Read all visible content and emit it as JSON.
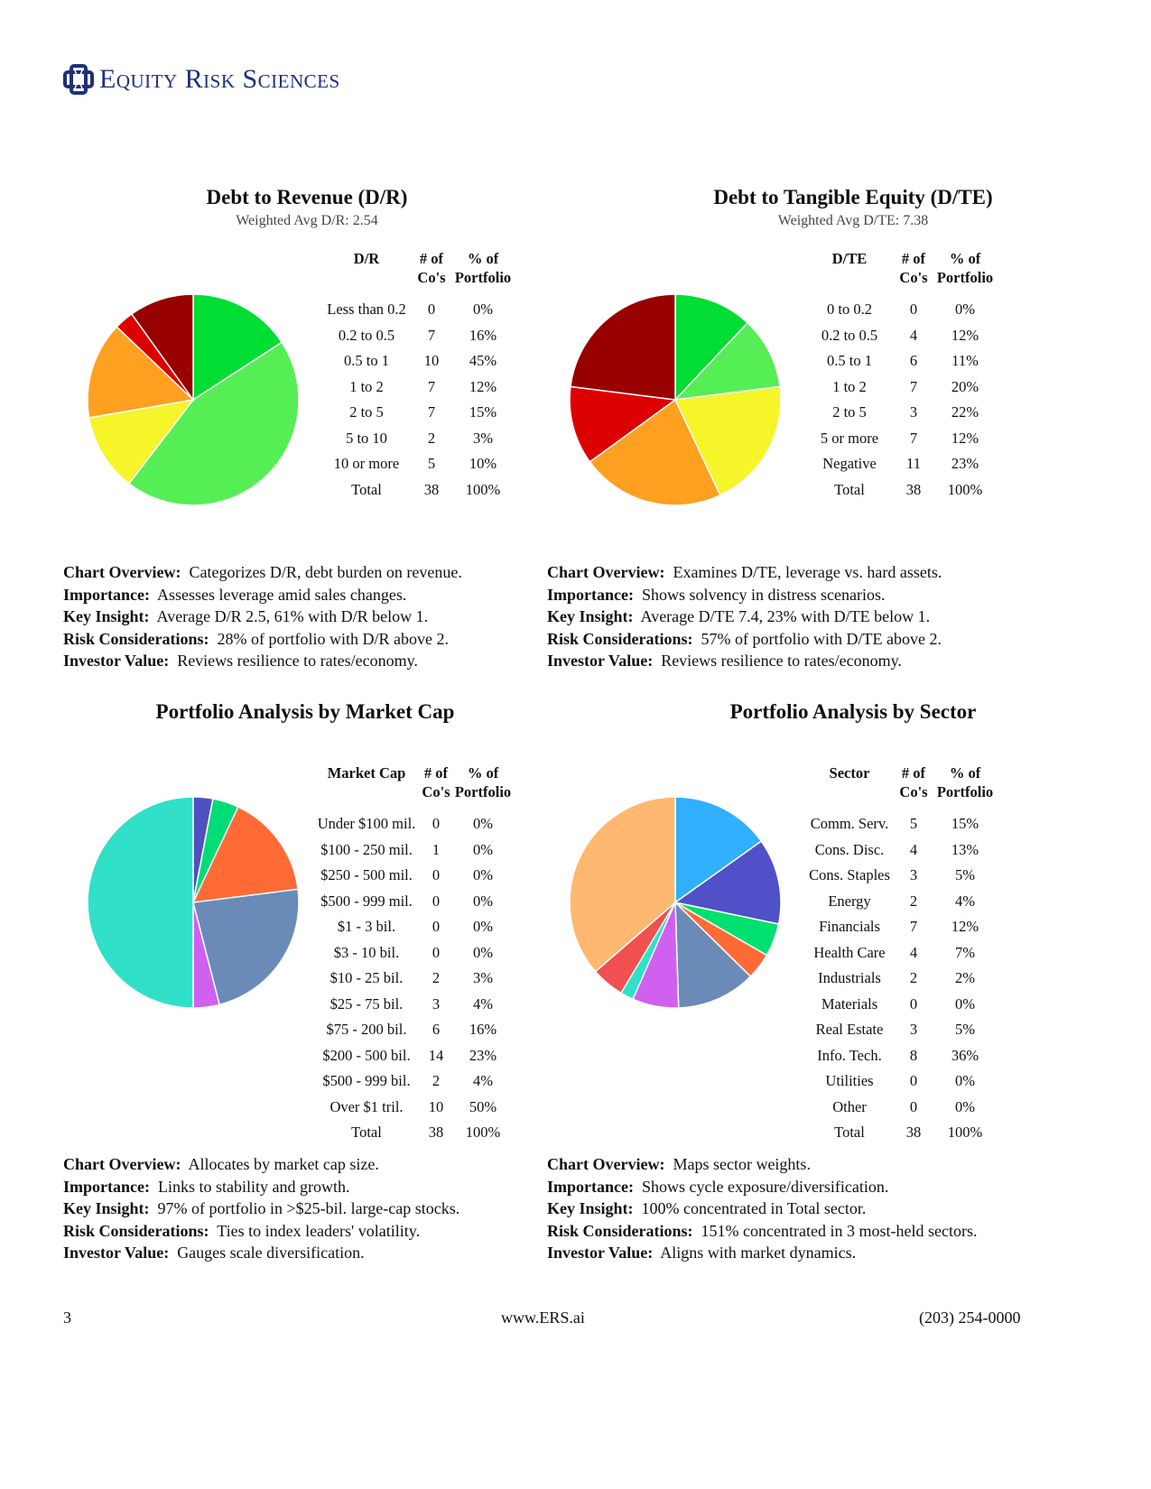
{
  "header": {
    "brand": "Equity Risk Sciences",
    "logo_icon": "celtic-knot-icon",
    "brand_color": "#1f2f7a"
  },
  "charts": [
    {
      "id": "dr",
      "title": "Debt to Revenue (D/R)",
      "subtitle": "Weighted Avg D/R: 2.54",
      "columns": [
        "D/R",
        "# of\nCo's",
        "% of\nPortfolio"
      ],
      "rows": [
        [
          "Less than 0.2",
          "0",
          "0%"
        ],
        [
          "0.2 to 0.5",
          "7",
          "16%"
        ],
        [
          "0.5 to 1",
          "10",
          "45%"
        ],
        [
          "1 to 2",
          "7",
          "12%"
        ],
        [
          "2 to 5",
          "7",
          "15%"
        ],
        [
          "5 to 10",
          "2",
          "3%"
        ],
        [
          "10 or more",
          "5",
          "10%"
        ],
        [
          "Total",
          "38",
          "100%"
        ]
      ],
      "colors": [
        "#00dd33",
        "#00dd33",
        "#55ee55",
        "#f5f52a",
        "#ffa020",
        "#dd0000",
        "#990000"
      ],
      "notes": [
        [
          "Chart Overview:",
          "Categorizes D/R, debt burden on revenue."
        ],
        [
          "Importance:",
          "Assesses leverage amid sales changes."
        ],
        [
          "Key Insight:",
          "Average D/R 2.5, 61% with D/R below 1."
        ],
        [
          "Risk Considerations:",
          "28% of portfolio with D/R above 2."
        ],
        [
          "Investor Value:",
          "Reviews resilience to rates/economy."
        ]
      ]
    },
    {
      "id": "dte",
      "title": "Debt to Tangible Equity (D/TE)",
      "subtitle": "Weighted Avg D/TE: 7.38",
      "columns": [
        "D/TE",
        "# of\nCo's",
        "% of\nPortfolio"
      ],
      "rows": [
        [
          "0 to 0.2",
          "0",
          "0%"
        ],
        [
          "0.2 to 0.5",
          "4",
          "12%"
        ],
        [
          "0.5 to 1",
          "6",
          "11%"
        ],
        [
          "1 to 2",
          "7",
          "20%"
        ],
        [
          "2 to 5",
          "3",
          "22%"
        ],
        [
          "5 or more",
          "7",
          "12%"
        ],
        [
          "Negative",
          "11",
          "23%"
        ],
        [
          "Total",
          "38",
          "100%"
        ]
      ],
      "colors": [
        "#00dd33",
        "#00dd33",
        "#55ee55",
        "#f5f52a",
        "#ffa020",
        "#dd0000",
        "#990000"
      ],
      "notes": [
        [
          "Chart Overview:",
          "Examines D/TE, leverage vs. hard assets."
        ],
        [
          "Importance:",
          "Shows solvency in distress scenarios."
        ],
        [
          "Key Insight:",
          "Average D/TE 7.4, 23% with D/TE below 1."
        ],
        [
          "Risk Considerations:",
          "57% of portfolio with D/TE above 2."
        ],
        [
          "Investor Value:",
          "Reviews resilience to rates/economy."
        ]
      ]
    },
    {
      "id": "mcap",
      "title": "Portfolio Analysis by Market Cap",
      "subtitle": "",
      "columns": [
        "Market Cap",
        "# of\nCo's",
        "% of\nPortfolio"
      ],
      "rows": [
        [
          "Under $100 mil.",
          "0",
          "0%"
        ],
        [
          "$100 - 250 mil.",
          "1",
          "0%"
        ],
        [
          "$250 - 500 mil.",
          "0",
          "0%"
        ],
        [
          "$500 - 999 mil.",
          "0",
          "0%"
        ],
        [
          "$1 - 3 bil.",
          "0",
          "0%"
        ],
        [
          "$3 - 10 bil.",
          "0",
          "0%"
        ],
        [
          "$10 - 25 bil.",
          "2",
          "3%"
        ],
        [
          "$25 - 75 bil.",
          "3",
          "4%"
        ],
        [
          "$75 - 200 bil.",
          "6",
          "16%"
        ],
        [
          "$200 - 500 bil.",
          "14",
          "23%"
        ],
        [
          "$500 - 999 bil.",
          "2",
          "4%"
        ],
        [
          "Over $1 tril.",
          "10",
          "50%"
        ],
        [
          "Total",
          "38",
          "100%"
        ]
      ],
      "colors": [
        "#888888",
        "#888888",
        "#888888",
        "#888888",
        "#888888",
        "#888888",
        "#5050c0",
        "#00dd77",
        "#ff6a35",
        "#6a8ab8",
        "#d060f0",
        "#30e0c8"
      ],
      "notes": [
        [
          "Chart Overview:",
          "Allocates by market cap size."
        ],
        [
          "Importance:",
          "Links to stability and growth."
        ],
        [
          "Key Insight:",
          "97% of portfolio in >$25-bil. large-cap stocks."
        ],
        [
          "Risk Considerations:",
          "Ties to index leaders' volatility."
        ],
        [
          "Investor Value:",
          "Gauges scale diversification."
        ]
      ]
    },
    {
      "id": "sector",
      "title": "Portfolio Analysis by Sector",
      "subtitle": "",
      "columns": [
        "Sector",
        "# of\nCo's",
        "% of\nPortfolio"
      ],
      "rows": [
        [
          "Comm. Serv.",
          "5",
          "15%"
        ],
        [
          "Cons. Disc.",
          "4",
          "13%"
        ],
        [
          "Cons. Staples",
          "3",
          "5%"
        ],
        [
          "Energy",
          "2",
          "4%"
        ],
        [
          "Financials",
          "7",
          "12%"
        ],
        [
          "Health Care",
          "4",
          "7%"
        ],
        [
          "Industrials",
          "2",
          "2%"
        ],
        [
          "Materials",
          "0",
          "0%"
        ],
        [
          "Real Estate",
          "3",
          "5%"
        ],
        [
          "Info. Tech.",
          "8",
          "36%"
        ],
        [
          "Utilities",
          "0",
          "0%"
        ],
        [
          "Other",
          "0",
          "0%"
        ],
        [
          "Total",
          "38",
          "100%"
        ]
      ],
      "colors": [
        "#30b0ff",
        "#5050c8",
        "#00e070",
        "#ff6a35",
        "#6a8ab8",
        "#d060f0",
        "#30e0c8",
        "#888888",
        "#f05050",
        "#ffb870",
        "#888888",
        "#888888"
      ],
      "notes": [
        [
          "Chart Overview:",
          "Maps sector weights."
        ],
        [
          "Importance:",
          "Shows cycle exposure/diversification."
        ],
        [
          "Key Insight:",
          "100% concentrated in Total sector."
        ],
        [
          "Risk Considerations:",
          "151% concentrated in 3 most-held sectors."
        ],
        [
          "Investor Value:",
          "Aligns with market dynamics."
        ]
      ]
    }
  ],
  "footer": {
    "page": "3",
    "website": "www.ERS.ai",
    "phone": "(203) 254-0000"
  }
}
